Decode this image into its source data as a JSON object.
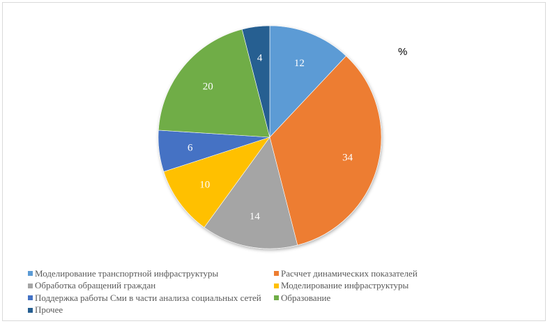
{
  "chart_data": {
    "type": "pie",
    "title": "",
    "unit_label": "%",
    "start_angle_deg": 0,
    "direction": "clockwise",
    "categories": [
      "Моделирование транспортной инфраструктуры",
      "Расчет динамических показателей",
      "Обработка обращений граждан",
      "Моделирование инфраструктуры",
      "Поддержка работы Сми в части анализа социальных сетей",
      "Образование",
      "Прочее"
    ],
    "values": [
      12,
      34,
      14,
      10,
      6,
      20,
      4
    ],
    "colors": [
      "#5b9bd5",
      "#ed7d31",
      "#a5a5a5",
      "#ffc000",
      "#4472c4",
      "#70ad47",
      "#255e91"
    ],
    "data_labels": [
      "12",
      "34",
      "14",
      "10",
      "6",
      "20",
      "4"
    ],
    "legend_position": "bottom",
    "legend_entries": [
      "Моделирование транспортной инфраструктуры",
      "Расччет динамических показателей",
      "Обработка обращений граждан",
      "Моделирование инфраструктуры",
      "Поддержка работы Сми в части анализа социальных сетей",
      "Образование",
      "Прочее"
    ]
  },
  "pct_label": "%",
  "legend": [
    {
      "label": "Моделирование транспортной инфраструктуры",
      "color": "#5b9bd5"
    },
    {
      "label": "Расччет динамических показателей",
      "color": "#ed7d31"
    },
    {
      "label": "Обработка обращений граждан",
      "color": "#a5a5a5"
    },
    {
      "label": "Моделирование инфраструктуры",
      "color": "#ffc000"
    },
    {
      "label": "Поддержка работы Сми в части анализа социальных сетей",
      "color": "#4472c4"
    },
    {
      "label": "Образование",
      "color": "#70ad47"
    },
    {
      "label": "Прочее",
      "color": "#255e91"
    }
  ]
}
